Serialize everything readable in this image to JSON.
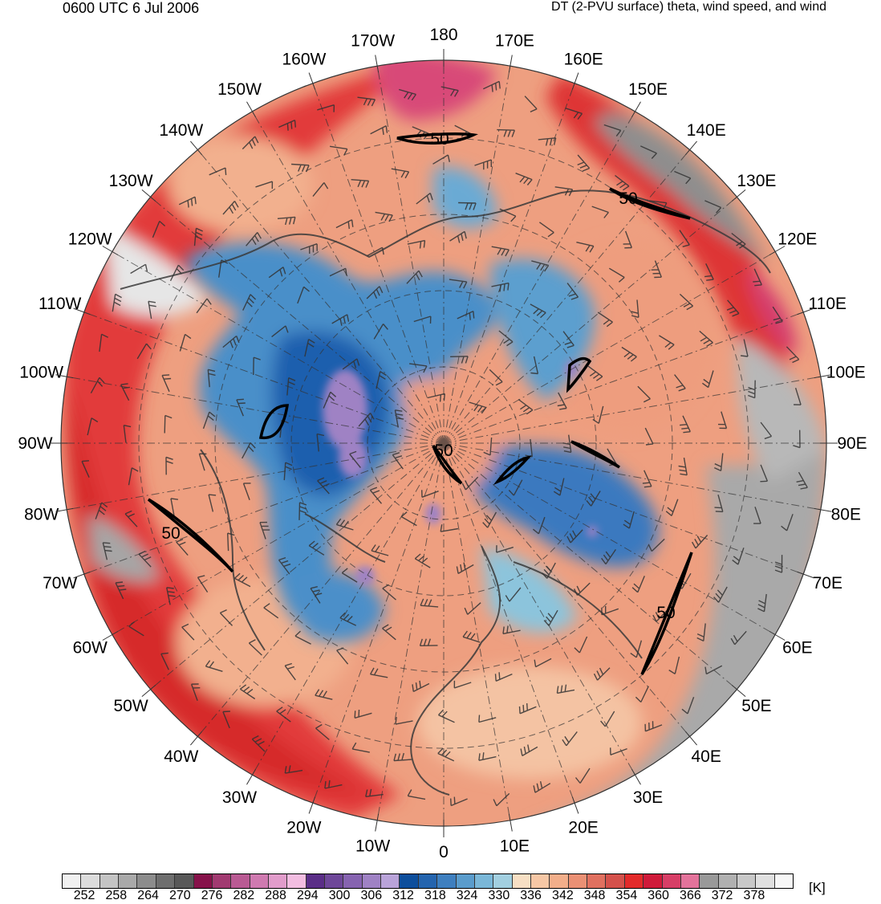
{
  "header": {
    "time_label": "0600 UTC 6 Jul 2006",
    "product_label": "DT (2-PVU surface) theta, wind speed, and wind"
  },
  "map": {
    "projection": "north-polar-stereographic",
    "longitude_labels": [
      "180",
      "170E",
      "160E",
      "150E",
      "140E",
      "130E",
      "120E",
      "110E",
      "100E",
      "90E",
      "80E",
      "70E",
      "60E",
      "50E",
      "40E",
      "30E",
      "20E",
      "10E",
      "0",
      "10W",
      "20W",
      "30W",
      "40W",
      "50W",
      "60W",
      "70W",
      "80W",
      "90W",
      "100W",
      "110W",
      "120W",
      "130W",
      "140W",
      "150W",
      "160W",
      "170W"
    ],
    "contour_label": "50",
    "contour_labels_shown": [
      "50",
      "50",
      "50",
      "50",
      "50"
    ]
  },
  "colorbar": {
    "units": "[K]",
    "tick_labels": [
      "252",
      "258",
      "264",
      "270",
      "276",
      "282",
      "288",
      "294",
      "300",
      "306",
      "312",
      "318",
      "324",
      "330",
      "336",
      "342",
      "348",
      "354",
      "360",
      "366",
      "372",
      "378"
    ],
    "colors": [
      "#f0f0f0",
      "#dcdcdc",
      "#c4c4c4",
      "#a9a9a9",
      "#8c8c8c",
      "#6e6e6e",
      "#585858",
      "#86124a",
      "#a13a71",
      "#b95a93",
      "#cf7ab0",
      "#e19ccb",
      "#f2bde1",
      "#5a2e87",
      "#6e4799",
      "#8663b0",
      "#9f82c4",
      "#b9a3d9",
      "#0d4e9c",
      "#2464ae",
      "#3e7fbf",
      "#5a9ccc",
      "#7ab7d8",
      "#a2cfe0",
      "#f7dfc4",
      "#f6c7a5",
      "#f2ae8a",
      "#ea9074",
      "#e0705f",
      "#d4514b",
      "#e32a2a",
      "#cf1a3a",
      "#d73e66",
      "#e3739b",
      "#999999",
      "#b0b0b0",
      "#c8c8c8",
      "#e0e0e0",
      "#f7f7f7"
    ]
  }
}
